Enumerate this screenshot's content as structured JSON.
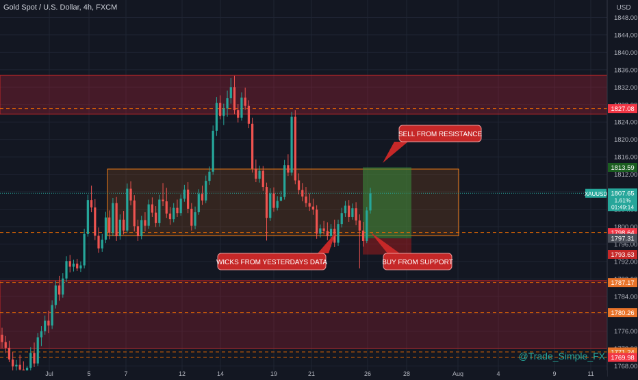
{
  "header": {
    "title": "Gold Spot / U.S. Dollar, 4h, FXCM"
  },
  "watermark": "@Trade_Simple_FX",
  "colors": {
    "background": "#131722",
    "grid": "#1f2433",
    "axis_text": "#b2b5be",
    "bull": "#26a69a",
    "bear": "#ef5350",
    "resistance_zone": "#7a1d27",
    "range_box": "#f57f17",
    "long_target": "#2e7d32",
    "long_stop": "#b71c1c",
    "callout_fill": "#c62828"
  },
  "chart_data": {
    "type": "candlestick",
    "symbol": "XAUUSD",
    "interval": "4h",
    "y_axis": {
      "unit": "USD",
      "range": [
        1767,
        1852
      ],
      "ticks": [
        1768,
        1772,
        1776,
        1780,
        1784,
        1788,
        1792,
        1796,
        1800,
        1804,
        1808,
        1812,
        1816,
        1820,
        1824,
        1828,
        1832,
        1836,
        1840,
        1844,
        1848
      ]
    },
    "x_axis": {
      "ticks": [
        "Jul",
        "5",
        "7",
        "12",
        "14",
        "19",
        "21",
        "26",
        "28",
        "Aug",
        "4",
        "9",
        "11"
      ]
    },
    "grid": true,
    "candles_ohlc": [
      [
        1775.2,
        1776.8,
        1772.1,
        1773.5
      ],
      [
        1773.5,
        1774.9,
        1771.0,
        1772.2
      ],
      [
        1772.2,
        1773.8,
        1768.9,
        1769.5
      ],
      [
        1769.5,
        1771.2,
        1766.8,
        1767.9
      ],
      [
        1767.9,
        1769.4,
        1765.9,
        1768.3
      ],
      [
        1768.3,
        1770.6,
        1766.5,
        1767.2
      ],
      [
        1767.2,
        1769.1,
        1765.0,
        1766.4
      ],
      [
        1766.4,
        1768.0,
        1764.6,
        1767.6
      ],
      [
        1767.6,
        1772.3,
        1767.0,
        1771.0
      ],
      [
        1771.0,
        1773.4,
        1767.8,
        1768.6
      ],
      [
        1768.6,
        1775.6,
        1768.0,
        1774.6
      ],
      [
        1774.6,
        1777.2,
        1772.6,
        1776.0
      ],
      [
        1776.0,
        1779.6,
        1775.2,
        1778.4
      ],
      [
        1778.4,
        1780.7,
        1775.6,
        1777.3
      ],
      [
        1777.3,
        1783.1,
        1776.5,
        1782.0
      ],
      [
        1782.0,
        1787.6,
        1781.2,
        1786.5
      ],
      [
        1786.5,
        1788.7,
        1783.0,
        1784.4
      ],
      [
        1784.4,
        1789.3,
        1783.7,
        1788.1
      ],
      [
        1788.1,
        1793.2,
        1787.3,
        1792.1
      ],
      [
        1792.1,
        1793.5,
        1789.5,
        1790.8
      ],
      [
        1790.8,
        1792.4,
        1789.7,
        1791.5
      ],
      [
        1791.5,
        1792.6,
        1789.8,
        1790.4
      ],
      [
        1790.4,
        1792.0,
        1789.6,
        1791.1
      ],
      [
        1791.1,
        1799.5,
        1790.4,
        1798.3
      ],
      [
        1798.3,
        1807.3,
        1797.7,
        1806.1
      ],
      [
        1806.1,
        1809.4,
        1803.3,
        1804.4
      ],
      [
        1804.4,
        1806.3,
        1796.9,
        1797.9
      ],
      [
        1797.9,
        1799.8,
        1794.0,
        1795.0
      ],
      [
        1795.0,
        1798.3,
        1794.2,
        1797.0
      ],
      [
        1797.0,
        1803.4,
        1796.2,
        1802.1
      ],
      [
        1802.1,
        1803.7,
        1797.1,
        1798.6
      ],
      [
        1798.6,
        1806.6,
        1797.8,
        1805.4
      ],
      [
        1805.4,
        1806.8,
        1796.7,
        1797.8
      ],
      [
        1797.8,
        1802.8,
        1797.0,
        1801.6
      ],
      [
        1801.6,
        1803.6,
        1798.2,
        1799.1
      ],
      [
        1799.1,
        1809.9,
        1798.6,
        1808.7
      ],
      [
        1808.7,
        1810.4,
        1804.9,
        1806.0
      ],
      [
        1806.0,
        1807.2,
        1798.9,
        1800.1
      ],
      [
        1800.1,
        1801.6,
        1796.7,
        1797.8
      ],
      [
        1797.8,
        1802.5,
        1797.1,
        1801.5
      ],
      [
        1801.5,
        1803.3,
        1798.9,
        1800.2
      ],
      [
        1800.2,
        1806.2,
        1799.5,
        1805.1
      ],
      [
        1805.1,
        1806.7,
        1802.2,
        1803.2
      ],
      [
        1803.2,
        1804.7,
        1799.9,
        1800.8
      ],
      [
        1800.8,
        1807.3,
        1800.0,
        1806.2
      ],
      [
        1806.2,
        1810.0,
        1804.7,
        1805.8
      ],
      [
        1805.8,
        1808.9,
        1802.0,
        1803.0
      ],
      [
        1803.0,
        1804.5,
        1800.4,
        1801.7
      ],
      [
        1801.7,
        1805.4,
        1801.0,
        1804.3
      ],
      [
        1804.3,
        1806.2,
        1802.2,
        1803.1
      ],
      [
        1803.1,
        1807.4,
        1802.5,
        1806.4
      ],
      [
        1806.4,
        1809.6,
        1805.7,
        1808.5
      ],
      [
        1808.5,
        1810.2,
        1803.1,
        1804.1
      ],
      [
        1804.1,
        1805.4,
        1799.1,
        1800.2
      ],
      [
        1800.2,
        1804.6,
        1799.4,
        1803.3
      ],
      [
        1803.3,
        1808.6,
        1802.7,
        1807.5
      ],
      [
        1807.5,
        1809.4,
        1805.0,
        1806.0
      ],
      [
        1806.0,
        1811.7,
        1805.4,
        1810.5
      ],
      [
        1810.5,
        1813.8,
        1809.6,
        1812.6
      ],
      [
        1812.6,
        1823.2,
        1811.9,
        1822.0
      ],
      [
        1822.0,
        1829.7,
        1820.8,
        1828.4
      ],
      [
        1828.4,
        1830.1,
        1824.6,
        1825.4
      ],
      [
        1825.4,
        1828.2,
        1823.3,
        1827.1
      ],
      [
        1827.1,
        1831.2,
        1825.2,
        1829.5
      ],
      [
        1829.5,
        1834.1,
        1828.2,
        1832.0
      ],
      [
        1832.0,
        1834.6,
        1825.8,
        1826.7
      ],
      [
        1826.7,
        1828.1,
        1823.9,
        1825.0
      ],
      [
        1825.0,
        1830.8,
        1824.3,
        1829.6
      ],
      [
        1829.6,
        1831.9,
        1826.8,
        1827.7
      ],
      [
        1827.7,
        1829.0,
        1822.6,
        1823.6
      ],
      [
        1823.6,
        1825.0,
        1812.4,
        1813.3
      ],
      [
        1813.3,
        1815.4,
        1810.2,
        1811.0
      ],
      [
        1811.0,
        1814.0,
        1810.1,
        1812.8
      ],
      [
        1812.8,
        1813.9,
        1808.2,
        1809.1
      ],
      [
        1809.1,
        1810.1,
        1796.8,
        1802.0
      ],
      [
        1802.0,
        1808.8,
        1801.3,
        1807.6
      ],
      [
        1807.6,
        1809.0,
        1803.4,
        1804.3
      ],
      [
        1804.3,
        1807.0,
        1803.7,
        1805.9
      ],
      [
        1805.9,
        1808.2,
        1806.0,
        1806.8
      ],
      [
        1806.8,
        1815.3,
        1806.2,
        1814.1
      ],
      [
        1814.1,
        1816.6,
        1811.6,
        1812.4
      ],
      [
        1812.4,
        1826.3,
        1811.7,
        1825.2
      ],
      [
        1825.2,
        1826.7,
        1809.7,
        1810.6
      ],
      [
        1810.6,
        1812.2,
        1807.4,
        1808.4
      ],
      [
        1808.4,
        1810.0,
        1805.8,
        1806.9
      ],
      [
        1806.9,
        1809.1,
        1804.5,
        1805.4
      ],
      [
        1805.4,
        1807.6,
        1803.6,
        1804.6
      ],
      [
        1804.6,
        1806.4,
        1802.7,
        1803.9
      ],
      [
        1803.9,
        1804.9,
        1797.2,
        1798.4
      ],
      [
        1798.4,
        1800.5,
        1797.5,
        1799.6
      ],
      [
        1799.6,
        1801.3,
        1798.2,
        1799.0
      ],
      [
        1799.0,
        1801.0,
        1796.9,
        1797.8
      ],
      [
        1797.8,
        1800.6,
        1795.4,
        1799.5
      ],
      [
        1799.5,
        1801.6,
        1795.3,
        1796.3
      ],
      [
        1796.3,
        1801.6,
        1795.6,
        1800.6
      ],
      [
        1800.6,
        1804.3,
        1799.8,
        1803.1
      ],
      [
        1803.1,
        1805.9,
        1802.2,
        1804.8
      ],
      [
        1804.8,
        1806.1,
        1801.1,
        1802.2
      ],
      [
        1802.2,
        1805.3,
        1801.6,
        1804.2
      ],
      [
        1804.2,
        1805.6,
        1800.3,
        1801.4
      ],
      [
        1801.4,
        1802.8,
        1790.4,
        1799.1
      ],
      [
        1799.1,
        1801.1,
        1795.4,
        1796.7
      ],
      [
        1796.7,
        1804.5,
        1796.2,
        1803.7
      ],
      [
        1803.7,
        1808.9,
        1803.0,
        1807.65
      ]
    ],
    "zones": [
      {
        "kind": "resistance",
        "top": 1834.7,
        "bottom": 1825.8
      },
      {
        "kind": "support",
        "top": 1787.6,
        "bottom": 1772.1
      },
      {
        "kind": "range",
        "top": 1813.2,
        "bottom": 1797.9
      },
      {
        "kind": "long_target",
        "top": 1813.6,
        "bottom": 1797.3
      },
      {
        "kind": "long_stop",
        "top": 1797.3,
        "bottom": 1793.6
      }
    ],
    "dashed_levels": [
      1827.08,
      1798.64,
      1787.17,
      1780.26,
      1771.24,
      1769.98
    ],
    "current_price_line": 1807.65,
    "annotations": [
      "SELL FROM RESISTANCE",
      "WICKS FROM YESTERDAYS DATA",
      "BUY FROM SUPPORT"
    ],
    "price_labels": [
      {
        "text": "1827.08",
        "value": 1827.08,
        "bg": "#f23645"
      },
      {
        "text": "1813.59",
        "value": 1813.59,
        "bg": "#1b5e20"
      },
      {
        "text": "1798.64",
        "value": 1798.64,
        "bg": "#f23645"
      },
      {
        "text": "1797.31",
        "value": 1797.31,
        "bg": "#4a4e58"
      },
      {
        "text": "1793.63",
        "value": 1793.63,
        "bg": "#c62828"
      },
      {
        "text": "1787.17",
        "value": 1787.17,
        "bg": "#e8732a"
      },
      {
        "text": "1780.26",
        "value": 1780.26,
        "bg": "#e8732a"
      },
      {
        "text": "1771.24",
        "value": 1771.24,
        "bg": "#e8732a"
      },
      {
        "text": "1769.98",
        "value": 1769.98,
        "bg": "#f23645"
      }
    ],
    "last_price_tag": {
      "symbol": "XAUUSD",
      "price": "1807.65",
      "change": "1.61%",
      "countdown": "01:49:14"
    }
  }
}
